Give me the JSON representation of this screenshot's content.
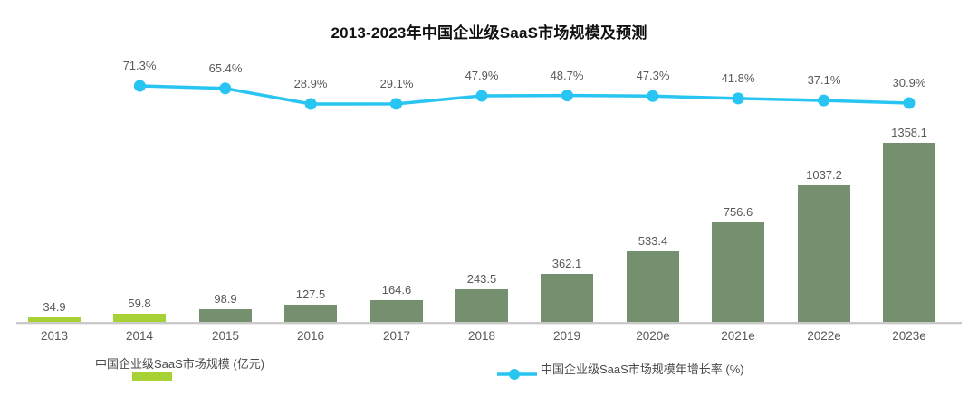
{
  "title": "2013-2023年中国企业级SaaS市场规模及预测",
  "legend": {
    "bar": {
      "label": "中国企业级SaaS市场规模 (亿元)",
      "swatch_color": "#a8d136"
    },
    "line": {
      "label": "中国企业级SaaS市场规模年增长率 (%)",
      "marker_color": "#29c5f2"
    }
  },
  "colors": {
    "bar_highlight": "#a8d136",
    "bar_default": "#75906f",
    "line": "#29c5f2",
    "label_text": "#595959",
    "title_text": "#111111",
    "axis_line": "#c9c9c9"
  },
  "chart_data": {
    "type": "bar+line combo",
    "title": "2013-2023年中国企业级SaaS市场规模及预测",
    "categories": [
      "2013",
      "2014",
      "2015",
      "2016",
      "2017",
      "2018",
      "2019",
      "2020e",
      "2021e",
      "2022e",
      "2023e"
    ],
    "series": [
      {
        "name": "中国企业级SaaS市场规模 (亿元)",
        "type": "bar",
        "unit": "亿元",
        "values": [
          34.9,
          59.8,
          98.9,
          127.5,
          164.6,
          243.5,
          362.1,
          533.4,
          756.6,
          1037.2,
          1358.1
        ],
        "highlight_indices": [
          0,
          1
        ]
      },
      {
        "name": "中国企业级SaaS市场规模年增长率 (%)",
        "type": "line",
        "unit": "%",
        "values": [
          null,
          71.3,
          65.4,
          28.9,
          29.1,
          47.9,
          48.7,
          47.3,
          41.8,
          37.1,
          30.9
        ]
      }
    ],
    "xlabel": "",
    "ylabel": "",
    "ylim_bar": [
      0,
      1450
    ],
    "grid": false,
    "legend_position": "bottom",
    "data_labels": true
  }
}
